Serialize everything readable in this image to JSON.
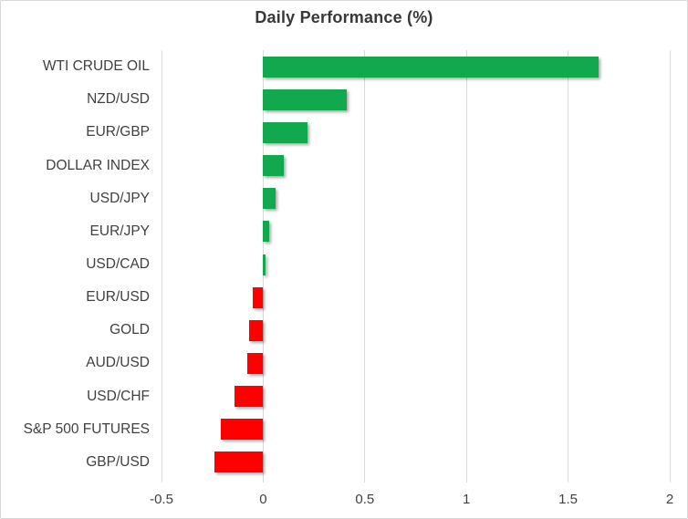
{
  "chart_data": {
    "type": "bar",
    "orientation": "horizontal",
    "title": "Daily Performance (%)",
    "categories": [
      "WTI CRUDE OIL",
      "NZD/USD",
      "EUR/GBP",
      "DOLLAR INDEX",
      "USD/JPY",
      "EUR/JPY",
      "USD/CAD",
      "EUR/USD",
      "GOLD",
      "AUD/USD",
      "USD/CHF",
      "S&P 500 FUTURES",
      "GBP/USD"
    ],
    "values": [
      1.65,
      0.41,
      0.22,
      0.1,
      0.06,
      0.03,
      0.01,
      -0.05,
      -0.07,
      -0.08,
      -0.14,
      -0.21,
      -0.24
    ],
    "xlabel": "",
    "ylabel": "",
    "xlim": [
      -0.5,
      2
    ],
    "xticks": [
      -0.5,
      0,
      0.5,
      1,
      1.5,
      2
    ],
    "xtick_labels": [
      "-0.5",
      "0",
      "0.5",
      "1",
      "1.5",
      "2"
    ],
    "grid": true,
    "legend": false,
    "colors": {
      "positive": "#12A84E",
      "negative": "#FF0000",
      "gridline": "#D9D9D9",
      "text": "#404040",
      "title": "#383838",
      "border": "#D6D6D6",
      "background": "#FFFFFF"
    }
  }
}
